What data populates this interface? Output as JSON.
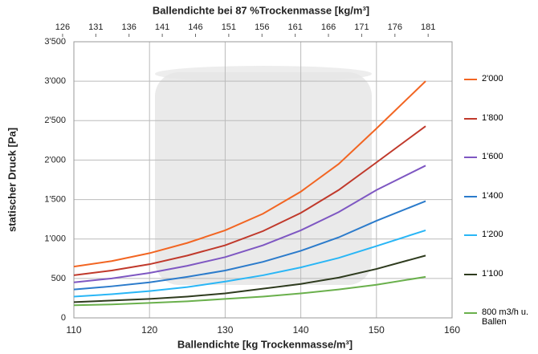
{
  "chart_data": {
    "type": "line",
    "title": "Ballendichte bei 87 %Trockenmasse [kg/m³]",
    "xlabel": "Ballendichte [kg Trockenmasse/m³]",
    "ylabel": "statischer Druck [Pa]",
    "x": [
      110,
      115,
      120,
      125,
      130,
      135,
      140,
      145,
      150,
      156.5
    ],
    "xlim": [
      110,
      160
    ],
    "xticks": [
      110,
      120,
      130,
      140,
      150,
      160
    ],
    "x2lim": [
      127.7,
      184.6
    ],
    "x2ticks": [
      126,
      131,
      136,
      141,
      146,
      151,
      156,
      161,
      166,
      171,
      176,
      181
    ],
    "ylim": [
      0,
      3500
    ],
    "yticks": [
      0,
      500,
      {
        "value": 1000,
        "label": "1'000"
      },
      {
        "value": 1500,
        "label": "1'500"
      },
      {
        "value": 2000,
        "label": "2'000"
      },
      {
        "value": 2500,
        "label": "2'500"
      },
      {
        "value": 3000,
        "label": "3'000"
      },
      {
        "value": 3500,
        "label": "3'500"
      }
    ],
    "grid": true,
    "series": [
      {
        "name": "2'000",
        "color": "#f26522",
        "values": [
          650,
          720,
          820,
          950,
          1110,
          1320,
          1600,
          1950,
          2400,
          3000
        ]
      },
      {
        "name": "1'800",
        "color": "#c0392b",
        "values": [
          540,
          600,
          680,
          790,
          920,
          1100,
          1330,
          1620,
          1970,
          2430
        ]
      },
      {
        "name": "1'600",
        "color": "#7e57c2",
        "values": [
          450,
          500,
          570,
          660,
          770,
          920,
          1110,
          1340,
          1620,
          1930
        ]
      },
      {
        "name": "1'400",
        "color": "#2b7bcb",
        "values": [
          360,
          400,
          450,
          520,
          600,
          710,
          850,
          1020,
          1230,
          1480
        ]
      },
      {
        "name": "1'200",
        "color": "#29b6f6",
        "values": [
          270,
          300,
          340,
          390,
          460,
          540,
          640,
          760,
          910,
          1110
        ]
      },
      {
        "name": "1'100",
        "color": "#2e3b1e",
        "values": [
          200,
          220,
          240,
          270,
          310,
          370,
          430,
          510,
          620,
          790
        ]
      },
      {
        "name": "800 m3/h u. Ballen",
        "color": "#6ab04c",
        "values": [
          160,
          170,
          190,
          210,
          240,
          270,
          310,
          360,
          420,
          520
        ]
      }
    ]
  }
}
